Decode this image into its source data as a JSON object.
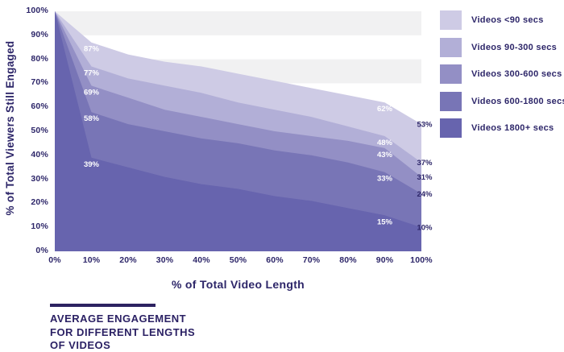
{
  "colors": {
    "text": "#2d2669",
    "footer_text": "#2b2164",
    "stripe": "#f1f1f2",
    "white_label": "#ffffff"
  },
  "chart_data": {
    "type": "area",
    "title": "AVERAGE ENGAGEMENT FOR DIFFERENT LENGTHS OF VIDEOS",
    "title_lines": [
      "AVERAGE ENGAGEMENT",
      "FOR DIFFERENT LENGTHS",
      "OF VIDEOS"
    ],
    "xlabel": "% of Total Video Length",
    "ylabel": "% of Total Viewers Still Engaged",
    "xlim": [
      0,
      100
    ],
    "ylim": [
      0,
      100
    ],
    "grid": "horizontal-stripes",
    "legend_position": "right",
    "x_ticks": [
      "0%",
      "10%",
      "20%",
      "30%",
      "40%",
      "50%",
      "60%",
      "70%",
      "80%",
      "90%",
      "100%"
    ],
    "y_ticks": [
      "0%",
      "10%",
      "20%",
      "30%",
      "40%",
      "50%",
      "60%",
      "70%",
      "80%",
      "90%",
      "100%"
    ],
    "x": [
      0,
      10,
      20,
      30,
      40,
      50,
      60,
      70,
      80,
      90,
      100
    ],
    "series": [
      {
        "name": "Videos <90 secs",
        "color": "#cecbe5",
        "values": [
          100,
          87,
          82,
          79,
          77,
          74,
          71,
          68,
          65,
          62,
          53
        ]
      },
      {
        "name": "Videos 90-300 secs",
        "color": "#b2afd7",
        "values": [
          100,
          77,
          72,
          69,
          66,
          62,
          59,
          56,
          52,
          48,
          37
        ]
      },
      {
        "name": "Videos 300-600 secs",
        "color": "#938fc5",
        "values": [
          100,
          69,
          64,
          59,
          56,
          53,
          50,
          48,
          46,
          43,
          31
        ]
      },
      {
        "name": "Videos 600-1800 secs",
        "color": "#7875b6",
        "values": [
          100,
          58,
          53,
          50,
          47,
          45,
          42,
          40,
          37,
          33,
          24
        ]
      },
      {
        "name": "Videos 1800+ secs",
        "color": "#6764ae",
        "values": [
          100,
          39,
          35,
          31,
          28,
          26,
          23,
          21,
          18,
          15,
          10
        ]
      }
    ],
    "labeled_points": {
      "x10": {
        "values": [
          87,
          77,
          69,
          58,
          39
        ],
        "color": "#ffffff"
      },
      "x90": {
        "values": [
          62,
          48,
          43,
          33,
          15
        ],
        "color": "#ffffff"
      },
      "x100": {
        "values": [
          53,
          37,
          31,
          24,
          10
        ],
        "color": "#2d2669"
      }
    },
    "stripes": [
      {
        "from": 100,
        "to": 90
      },
      {
        "from": 80,
        "to": 70
      }
    ]
  }
}
